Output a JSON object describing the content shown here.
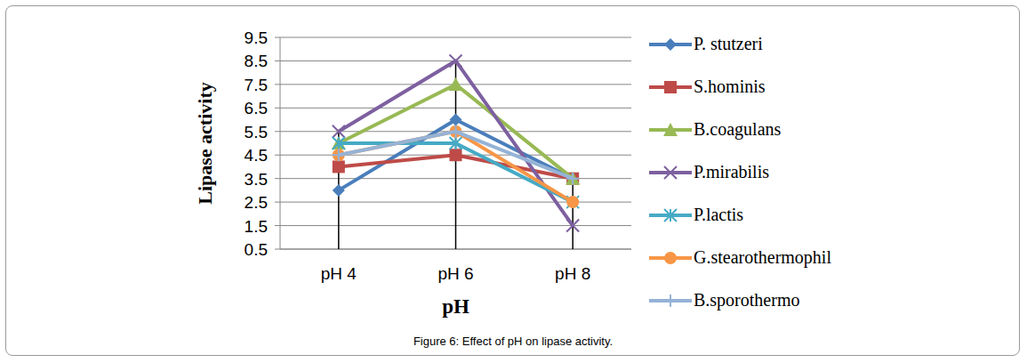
{
  "chart_data": {
    "type": "line",
    "title": "Figure 6: Effect of pH on lipase activity.",
    "x_label": "pH",
    "y_label": "Lipase activity",
    "categories": [
      "pH 4",
      "pH 6",
      "pH 8"
    ],
    "ylim": [
      0.5,
      9.5
    ],
    "yticks": [
      0.5,
      1.5,
      2.5,
      3.5,
      4.5,
      5.5,
      6.5,
      7.5,
      8.5,
      9.5
    ],
    "grid": true,
    "legend": "right",
    "series": [
      {
        "name": "P. stutzeri",
        "color": "#4a7ebb",
        "marker": "diamond",
        "values": [
          3,
          6,
          3.5
        ]
      },
      {
        "name": "S.hominis",
        "color": "#be4b48",
        "marker": "square",
        "values": [
          4,
          4.5,
          3.5
        ]
      },
      {
        "name": "B.coagulans",
        "color": "#98b954",
        "marker": "triangle",
        "values": [
          5,
          7.5,
          3.5
        ]
      },
      {
        "name": "P.mirabilis",
        "color": "#7d60a0",
        "marker": "x",
        "values": [
          5.5,
          8.5,
          1.5
        ]
      },
      {
        "name": "P.lactis",
        "color": "#46aac5",
        "marker": "star",
        "values": [
          5,
          5,
          2.5
        ]
      },
      {
        "name": "G.stearothermophil",
        "color": "#f79646",
        "marker": "circle",
        "values": [
          4.5,
          5.5,
          2.5
        ]
      },
      {
        "name": "B.sporothermo",
        "color": "#95b3d7",
        "marker": "plus",
        "values": [
          4.5,
          5.5,
          3.5
        ]
      }
    ]
  }
}
